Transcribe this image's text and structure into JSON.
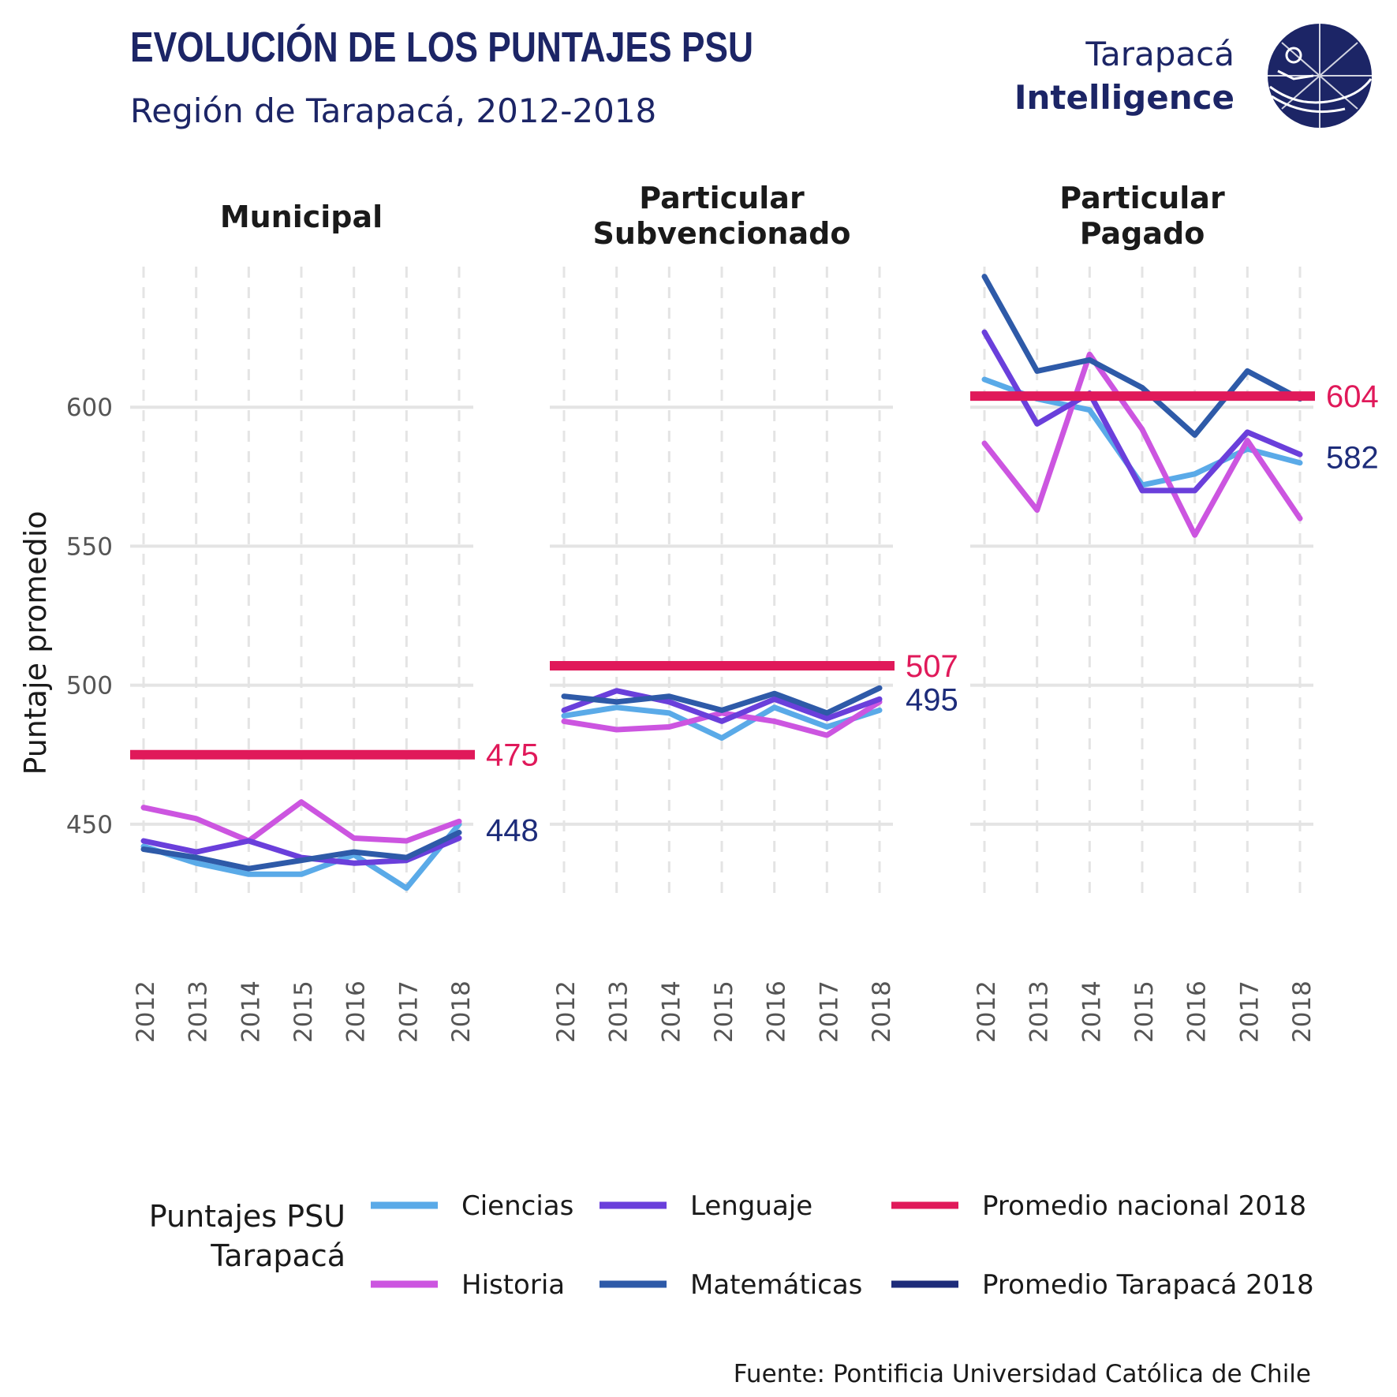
{
  "header": {
    "title": "EVOLUCIÓN DE LOS PUNTAJES PSU",
    "subtitle": "Región de Tarapacá, 2012-2018"
  },
  "logo": {
    "line1": "Tarapacá",
    "line2": "Intelligence",
    "icon": "globe-compass-icon"
  },
  "source": "Fuente: Pontificia Universidad Católica de Chile",
  "colors": {
    "ciencias": "#5aaae8",
    "historia": "#cc55e0",
    "lenguaje": "#6a3fdb",
    "matematicas": "#2e5aa8",
    "promedio_nacional": "#e0195a",
    "promedio_tarapaca": "#1d2c7a",
    "title": "#1c2566",
    "grid": "#e4e4e4"
  },
  "chart_data": {
    "type": "line",
    "ylabel": "Puntaje promedio",
    "ylim": [
      423,
      650
    ],
    "yticks": [
      "450",
      "500",
      "550",
      "600"
    ],
    "x": [
      "2012",
      "2013",
      "2014",
      "2015",
      "2016",
      "2017",
      "2018"
    ],
    "grid": true,
    "legend": {
      "title": "Puntajes PSU Tarapacá",
      "title_lines": [
        "Puntajes PSU",
        "Tarapacá"
      ],
      "placement": "bottom",
      "entries": [
        {
          "label": "Ciencias",
          "color": "#5aaae8"
        },
        {
          "label": "Lenguaje",
          "color": "#6a3fdb"
        },
        {
          "label": "Promedio nacional 2018",
          "color": "#e0195a"
        },
        {
          "label": "Historia",
          "color": "#cc55e0"
        },
        {
          "label": "Matemáticas",
          "color": "#2e5aa8"
        },
        {
          "label": "Promedio Tarapacá 2018",
          "color": "#1d2c7a"
        }
      ]
    },
    "panels": [
      {
        "title_lines": [
          "Municipal"
        ],
        "promedio_nacional_2018": 475,
        "promedio_tarapaca_2018": 448,
        "series": [
          {
            "name": "Ciencias",
            "color": "#5aaae8",
            "values": [
              442,
              436,
              432,
              432,
              439,
              427,
              450
            ]
          },
          {
            "name": "Historia",
            "color": "#cc55e0",
            "values": [
              456,
              452,
              444,
              458,
              445,
              444,
              451
            ]
          },
          {
            "name": "Lenguaje",
            "color": "#6a3fdb",
            "values": [
              444,
              440,
              444,
              438,
              436,
              437,
              445
            ]
          },
          {
            "name": "Matemáticas",
            "color": "#2e5aa8",
            "values": [
              441,
              438,
              434,
              437,
              440,
              438,
              447
            ]
          }
        ]
      },
      {
        "title_lines": [
          "Particular",
          "Subvencionado"
        ],
        "promedio_nacional_2018": 507,
        "promedio_tarapaca_2018": 495,
        "series": [
          {
            "name": "Ciencias",
            "color": "#5aaae8",
            "values": [
              489,
              492,
              490,
              481,
              492,
              485,
              491
            ]
          },
          {
            "name": "Historia",
            "color": "#cc55e0",
            "values": [
              487,
              484,
              485,
              490,
              487,
              482,
              494
            ]
          },
          {
            "name": "Lenguaje",
            "color": "#6a3fdb",
            "values": [
              491,
              498,
              494,
              487,
              495,
              488,
              495
            ]
          },
          {
            "name": "Matemáticas",
            "color": "#2e5aa8",
            "values": [
              496,
              494,
              496,
              491,
              497,
              490,
              499
            ]
          }
        ]
      },
      {
        "title_lines": [
          "Particular",
          "Pagado"
        ],
        "promedio_nacional_2018": 604,
        "promedio_tarapaca_2018": 582,
        "series": [
          {
            "name": "Ciencias",
            "color": "#5aaae8",
            "values": [
              610,
              603,
              599,
              572,
              576,
              585,
              580
            ]
          },
          {
            "name": "Historia",
            "color": "#cc55e0",
            "values": [
              587,
              563,
              619,
              592,
              554,
              588,
              560
            ]
          },
          {
            "name": "Lenguaje",
            "color": "#6a3fdb",
            "values": [
              627,
              594,
              605,
              570,
              570,
              591,
              583
            ]
          },
          {
            "name": "Matemáticas",
            "color": "#2e5aa8",
            "values": [
              647,
              613,
              617,
              607,
              590,
              613,
              603
            ]
          }
        ]
      }
    ]
  }
}
